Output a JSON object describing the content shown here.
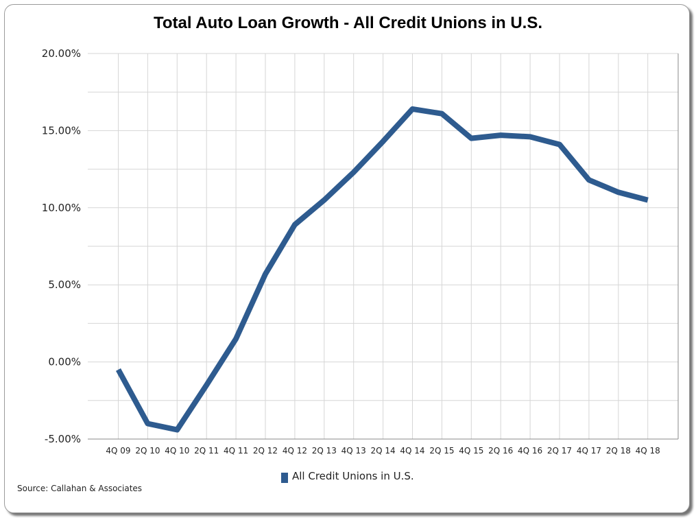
{
  "chart_data": {
    "type": "line",
    "title": "Total Auto Loan Growth - All Credit Unions in U.S.",
    "xlabel": "",
    "ylabel": "",
    "categories": [
      "4Q 09",
      "2Q 10",
      "4Q 10",
      "2Q 11",
      "4Q 11",
      "2Q 12",
      "4Q 12",
      "2Q 13",
      "4Q 13",
      "2Q 14",
      "4Q 14",
      "2Q 15",
      "4Q 15",
      "2Q 16",
      "4Q 16",
      "2Q 17",
      "4Q 17",
      "2Q 18",
      "4Q 18"
    ],
    "y_ticks": [
      "20.00%",
      "15.00%",
      "10.00%",
      "5.00%",
      "0.00%",
      "-5.00%"
    ],
    "ylim": [
      -5,
      20
    ],
    "grid": true,
    "legend_position": "bottom",
    "series": [
      {
        "name": "All Credit Unions in U.S.",
        "color": "#2e5b8f",
        "values": [
          -0.5,
          -4.0,
          -4.4,
          -1.5,
          1.5,
          5.7,
          8.9,
          10.5,
          12.3,
          14.3,
          16.4,
          16.1,
          14.5,
          14.7,
          14.6,
          14.1,
          11.8,
          11.0,
          10.5
        ]
      }
    ]
  },
  "source_text": "Source: Callahan & Associates"
}
